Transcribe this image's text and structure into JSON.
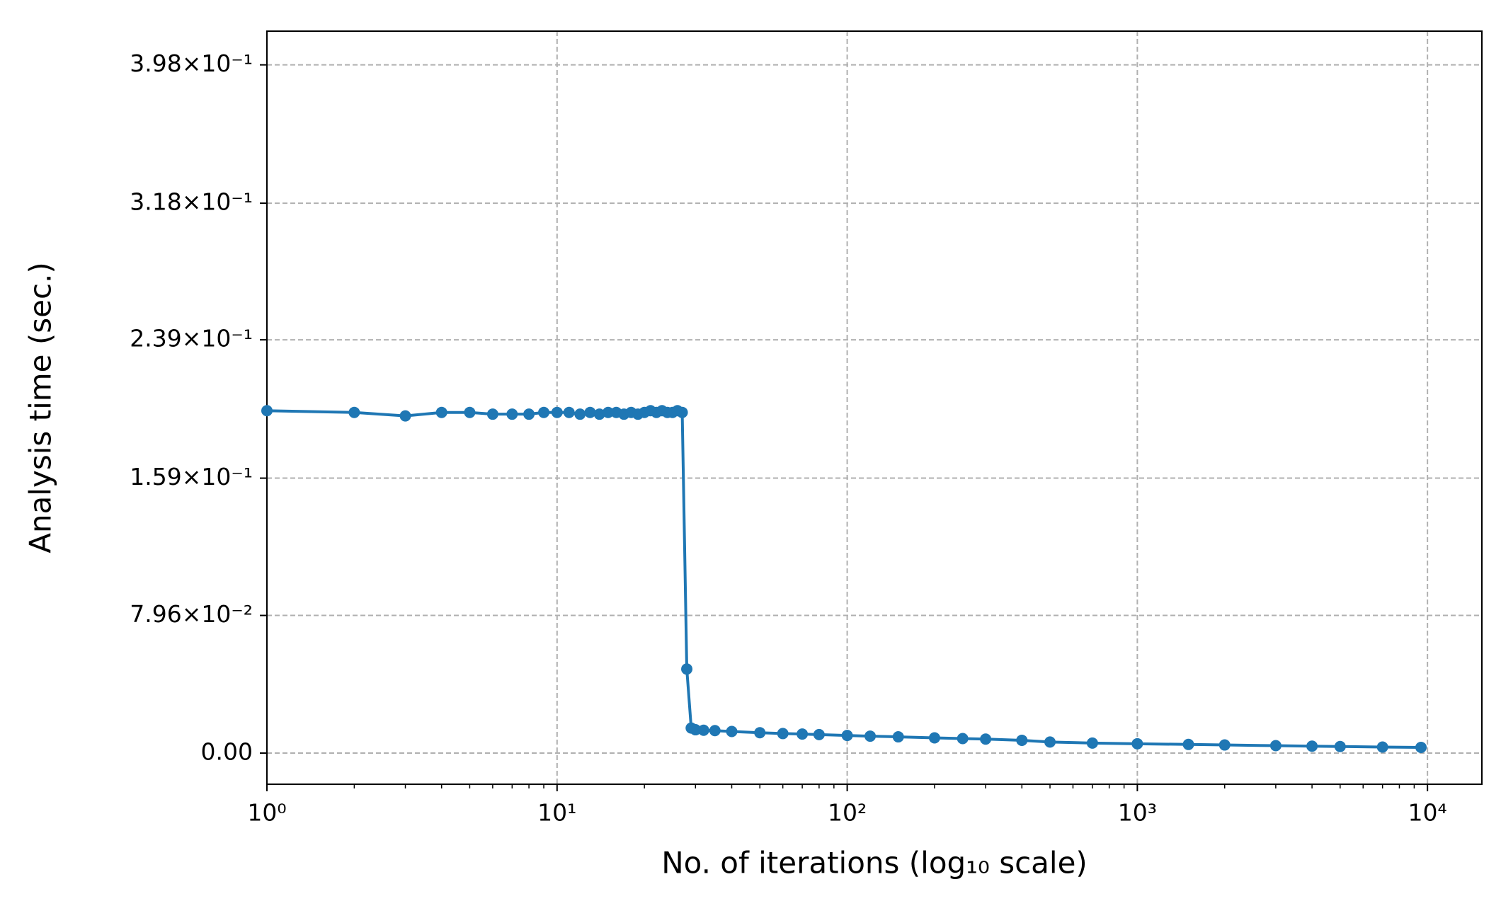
{
  "chart_data": {
    "type": "line",
    "xlabel": "No. of iterations (log₁₀ scale)",
    "ylabel": "Analysis time (sec.)",
    "x": [
      1,
      2,
      3,
      4,
      5,
      6,
      7,
      8,
      9,
      10,
      11,
      12,
      13,
      14,
      15,
      16,
      17,
      18,
      19,
      20,
      21,
      22,
      23,
      24,
      25,
      26,
      27,
      28,
      29,
      30,
      32,
      35,
      40,
      50,
      60,
      70,
      80,
      100,
      120,
      150,
      200,
      250,
      300,
      400,
      500,
      700,
      1000,
      1500,
      2000,
      3000,
      4000,
      5000,
      7000,
      9500
    ],
    "series": [
      {
        "name": "Analysis time",
        "color": "#1f77b4",
        "values": [
          0.198,
          0.197,
          0.195,
          0.197,
          0.197,
          0.196,
          0.196,
          0.196,
          0.197,
          0.197,
          0.197,
          0.196,
          0.197,
          0.196,
          0.197,
          0.197,
          0.196,
          0.197,
          0.196,
          0.197,
          0.198,
          0.197,
          0.198,
          0.197,
          0.197,
          0.198,
          0.197,
          0.0486,
          0.0145,
          0.0135,
          0.0132,
          0.013,
          0.0125,
          0.0118,
          0.0113,
          0.011,
          0.0107,
          0.0102,
          0.0098,
          0.0094,
          0.0088,
          0.0084,
          0.0081,
          0.0074,
          0.0064,
          0.0058,
          0.0054,
          0.005,
          0.0047,
          0.0043,
          0.004,
          0.0038,
          0.0035,
          0.0033
        ]
      }
    ],
    "xscale": "log",
    "xlim": [
      1,
      15400
    ],
    "xticks": [
      {
        "value": 1,
        "label": "10⁰"
      },
      {
        "value": 10,
        "label": "10¹"
      },
      {
        "value": 100,
        "label": "10²"
      },
      {
        "value": 1000,
        "label": "10³"
      },
      {
        "value": 10000,
        "label": "10⁴"
      }
    ],
    "ylim": [
      -0.018,
      0.4175
    ],
    "yticks": [
      {
        "value": 0,
        "label": "0.00"
      },
      {
        "value": 0.0796,
        "label": "7.96×10⁻²"
      },
      {
        "value": 0.159,
        "label": "1.59×10⁻¹"
      },
      {
        "value": 0.239,
        "label": "2.39×10⁻¹"
      },
      {
        "value": 0.318,
        "label": "3.18×10⁻¹"
      },
      {
        "value": 0.398,
        "label": "3.98×10⁻¹"
      }
    ],
    "grid": true
  }
}
